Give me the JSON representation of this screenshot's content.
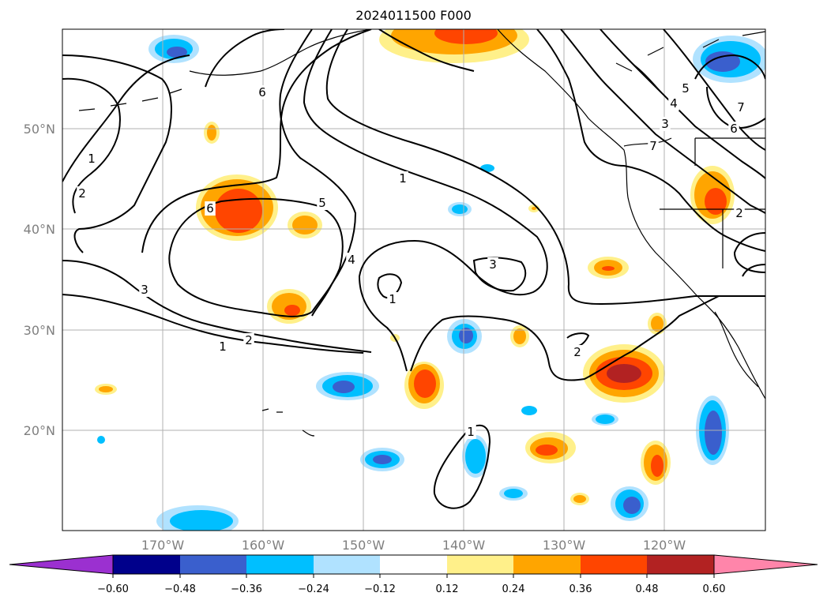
{
  "title": "2024011500 F000",
  "map": {
    "lat_labels": [
      "50°N",
      "40°N",
      "30°N",
      "20°N"
    ],
    "lon_labels": [
      "170°W",
      "160°W",
      "150°W",
      "140°W",
      "130°W",
      "120°W"
    ],
    "contour_labels": [
      "1",
      "2",
      "6",
      "6",
      "5",
      "4",
      "3",
      "1",
      "2",
      "1",
      "1",
      "3",
      "2",
      "1",
      "5",
      "4",
      "3",
      "7",
      "6",
      "7",
      "2"
    ]
  },
  "colorbar": {
    "ticks": [
      "−0.60",
      "−0.48",
      "−0.36",
      "−0.24",
      "−0.12",
      "0.12",
      "0.24",
      "0.36",
      "0.48",
      "0.60"
    ],
    "colors": [
      "#9b30d0",
      "#00008b",
      "#3a5fcd",
      "#00bfff",
      "#b0e2ff",
      "#ffffff",
      "#fff08a",
      "#ffa500",
      "#ff4500",
      "#b22222",
      "#ff85aa"
    ]
  }
}
